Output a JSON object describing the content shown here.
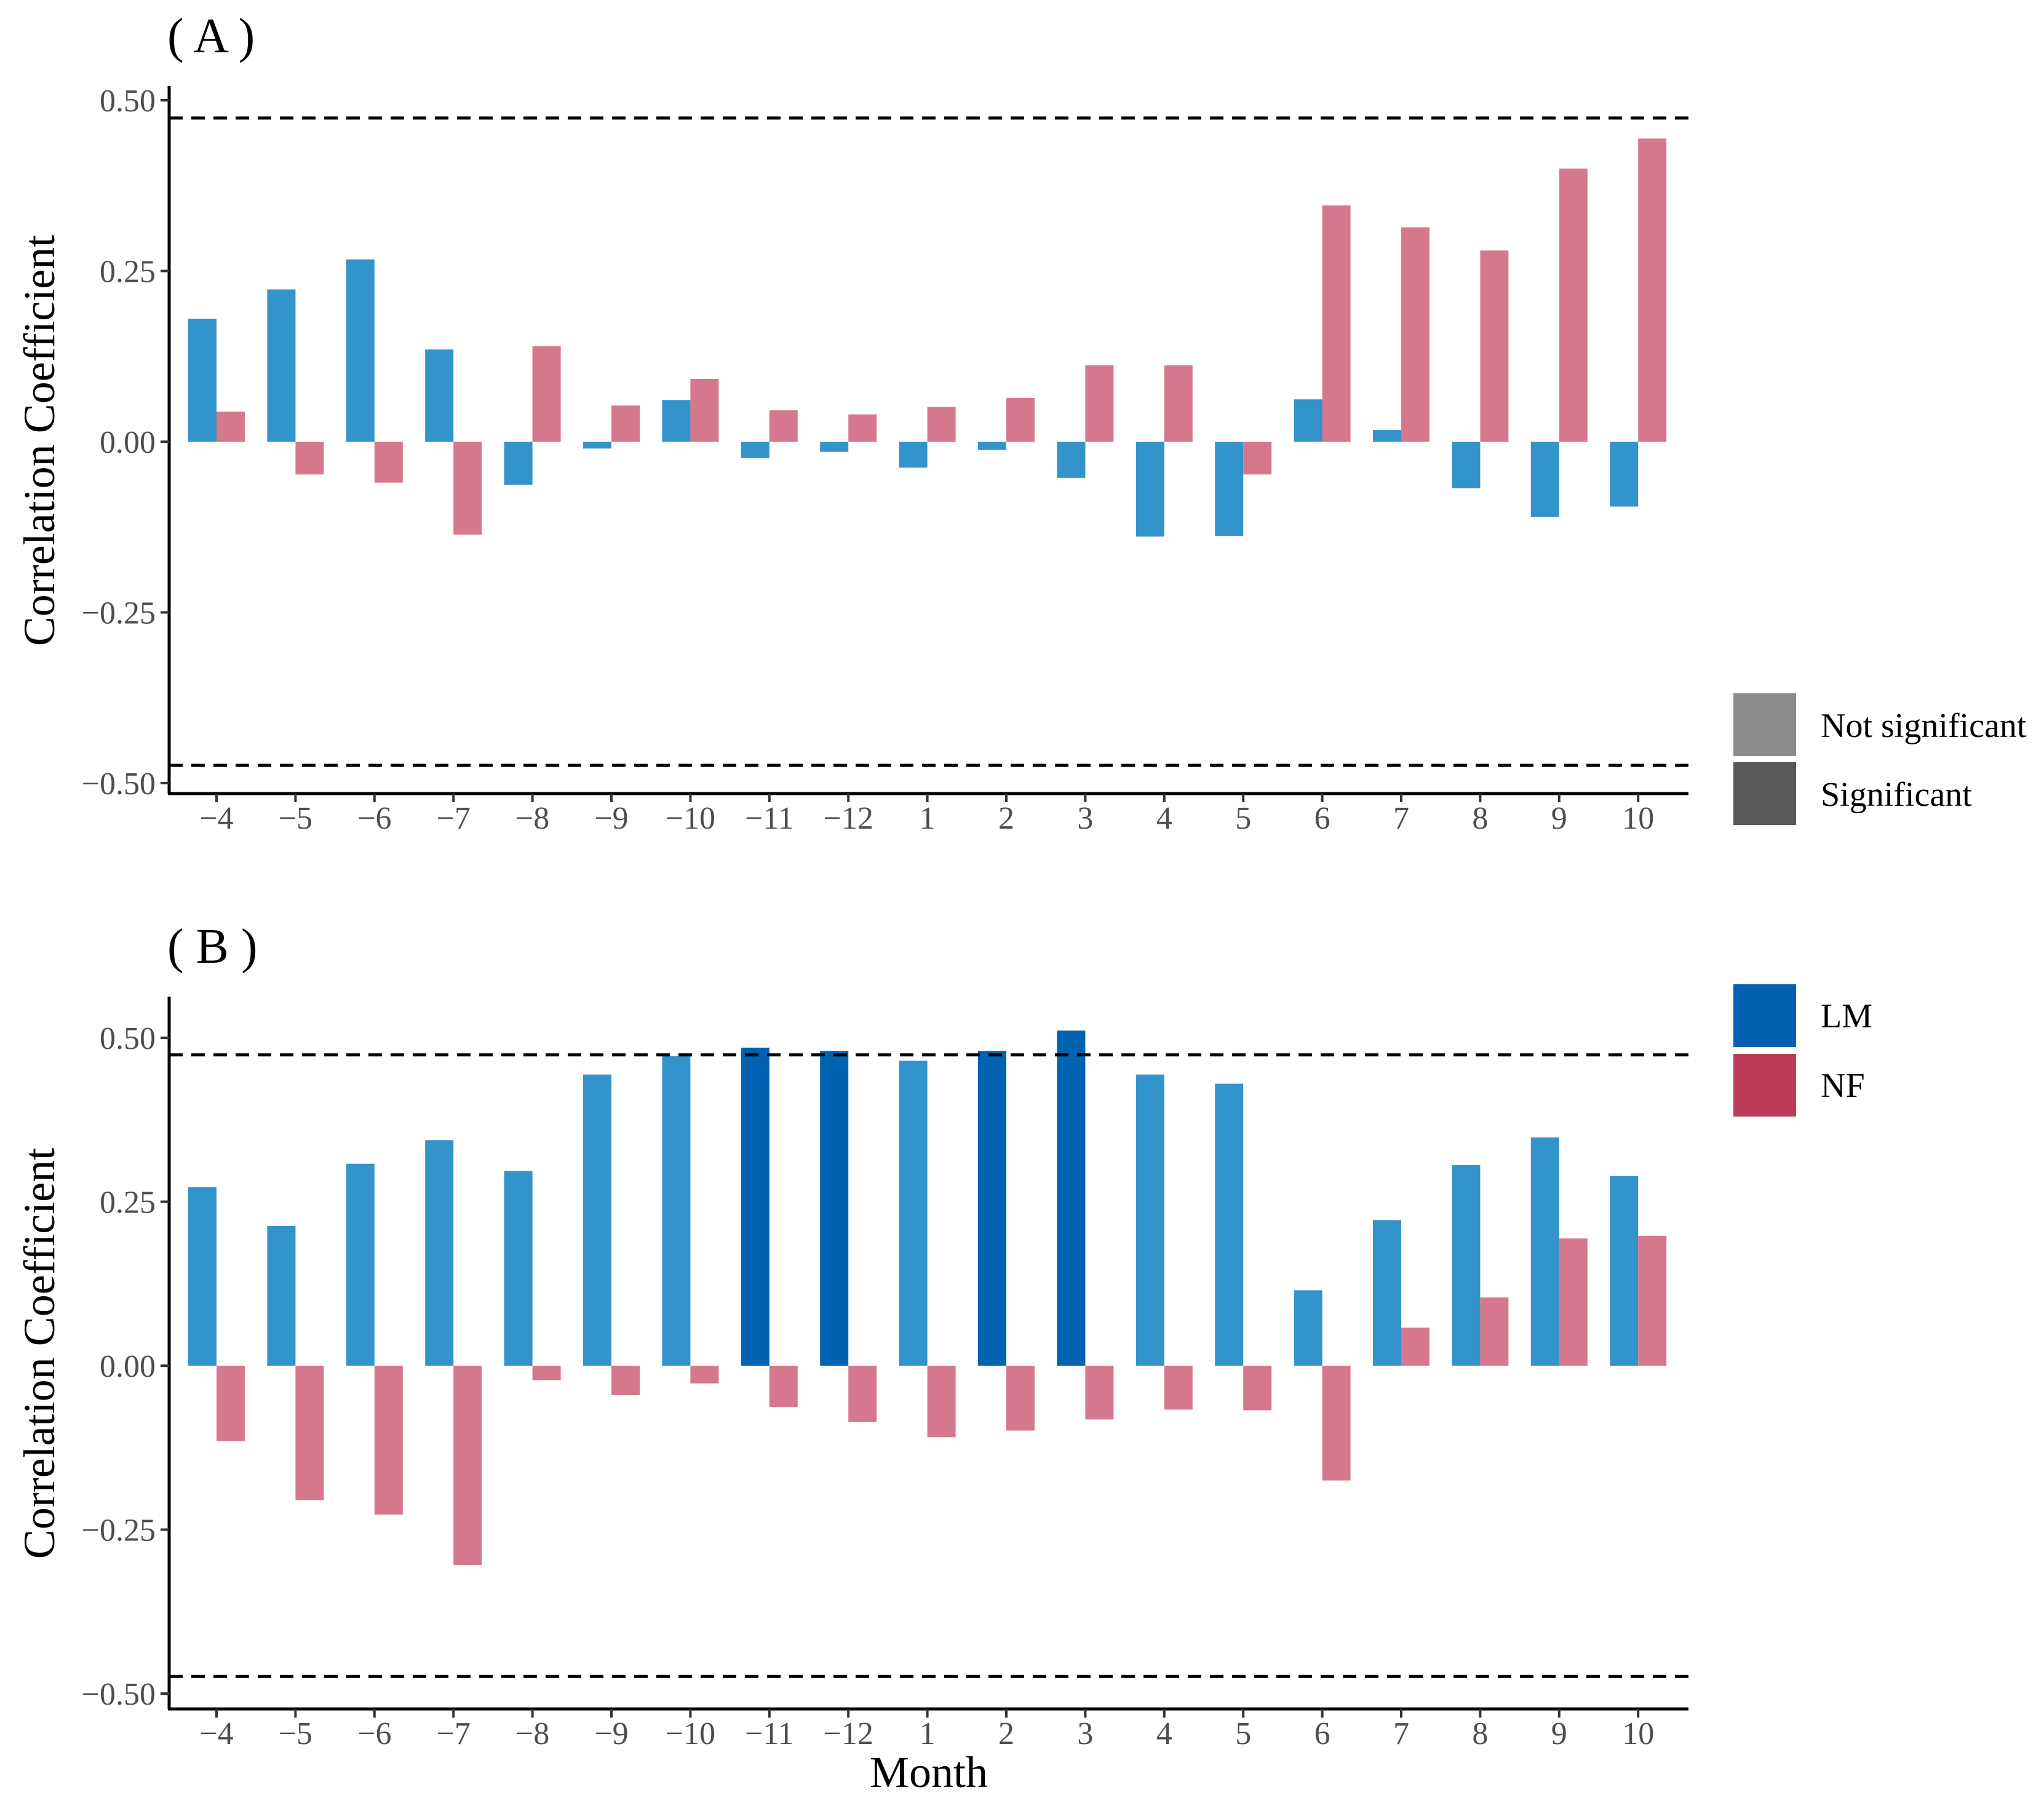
{
  "chart_data": [
    {
      "type": "bar",
      "panel_label": "( A )",
      "ylabel": "Correlation Coefficient",
      "xlabel": "",
      "ylim": [
        -0.52,
        0.52
      ],
      "yticks": [
        -0.5,
        -0.25,
        0.0,
        0.25,
        0.5
      ],
      "ytick_labels": [
        "−0.50",
        "−0.25",
        "0.00",
        "0.25",
        "0.50"
      ],
      "threshold_lines": [
        0.474,
        -0.474
      ],
      "categories": [
        "−4",
        "−5",
        "−6",
        "−7",
        "−8",
        "−9",
        "−10",
        "−11",
        "−12",
        "1",
        "2",
        "3",
        "4",
        "5",
        "6",
        "7",
        "8",
        "9",
        "10"
      ],
      "series": [
        {
          "name": "LM",
          "values": [
            0.18,
            0.223,
            0.267,
            0.135,
            -0.063,
            -0.01,
            0.061,
            -0.024,
            -0.015,
            -0.038,
            -0.012,
            -0.053,
            -0.139,
            -0.138,
            0.062,
            0.017,
            -0.068,
            -0.11,
            -0.095
          ],
          "significant": [
            false,
            false,
            false,
            false,
            false,
            false,
            false,
            false,
            false,
            false,
            false,
            false,
            false,
            false,
            false,
            false,
            false,
            false,
            false
          ]
        },
        {
          "name": "NF",
          "values": [
            0.044,
            -0.048,
            -0.06,
            -0.136,
            0.14,
            0.053,
            0.092,
            0.046,
            0.04,
            0.051,
            0.064,
            0.112,
            0.112,
            -0.048,
            0.346,
            0.314,
            0.28,
            0.4,
            0.444
          ],
          "significant": [
            false,
            false,
            false,
            false,
            false,
            false,
            false,
            false,
            false,
            false,
            false,
            false,
            false,
            false,
            false,
            false,
            false,
            false,
            false
          ]
        }
      ]
    },
    {
      "type": "bar",
      "panel_label": "( B )",
      "ylabel": "Correlation Coefficient",
      "xlabel": "Month",
      "ylim": [
        -0.52,
        0.56
      ],
      "yticks": [
        -0.5,
        -0.25,
        0.0,
        0.25,
        0.5
      ],
      "ytick_labels": [
        "−0.50",
        "−0.25",
        "0.00",
        "0.25",
        "0.50"
      ],
      "threshold_lines": [
        0.474,
        -0.474
      ],
      "categories": [
        "−4",
        "−5",
        "−6",
        "−7",
        "−8",
        "−9",
        "−10",
        "−11",
        "−12",
        "1",
        "2",
        "3",
        "4",
        "5",
        "6",
        "7",
        "8",
        "9",
        "10"
      ],
      "series": [
        {
          "name": "LM",
          "values": [
            0.272,
            0.213,
            0.308,
            0.344,
            0.297,
            0.444,
            0.472,
            0.485,
            0.48,
            0.465,
            0.48,
            0.511,
            0.444,
            0.43,
            0.115,
            0.222,
            0.306,
            0.348,
            0.289
          ],
          "significant": [
            false,
            false,
            false,
            false,
            false,
            false,
            false,
            true,
            true,
            false,
            true,
            true,
            false,
            false,
            false,
            false,
            false,
            false,
            false
          ]
        },
        {
          "name": "NF",
          "values": [
            -0.115,
            -0.205,
            -0.227,
            -0.304,
            -0.022,
            -0.045,
            -0.027,
            -0.063,
            -0.086,
            -0.109,
            -0.099,
            -0.082,
            -0.067,
            -0.068,
            -0.175,
            0.058,
            0.104,
            0.194,
            0.198
          ],
          "significant": [
            false,
            false,
            false,
            false,
            false,
            false,
            false,
            false,
            false,
            false,
            false,
            false,
            false,
            false,
            false,
            false,
            false,
            false,
            false
          ]
        }
      ]
    }
  ],
  "legend": {
    "significance": [
      {
        "label": "Not significant",
        "color": "#8c8c8c"
      },
      {
        "label": "Significant",
        "color": "#595959"
      }
    ],
    "groups": [
      {
        "label": "LM",
        "color": "#0062b0"
      },
      {
        "label": "NF",
        "color": "#bc3a5a"
      }
    ]
  },
  "colors": {
    "LM_light": "#3393cb",
    "LM_dark": "#0062b0",
    "NF_light": "#d6788d",
    "NF_dark": "#bc3a5a"
  }
}
